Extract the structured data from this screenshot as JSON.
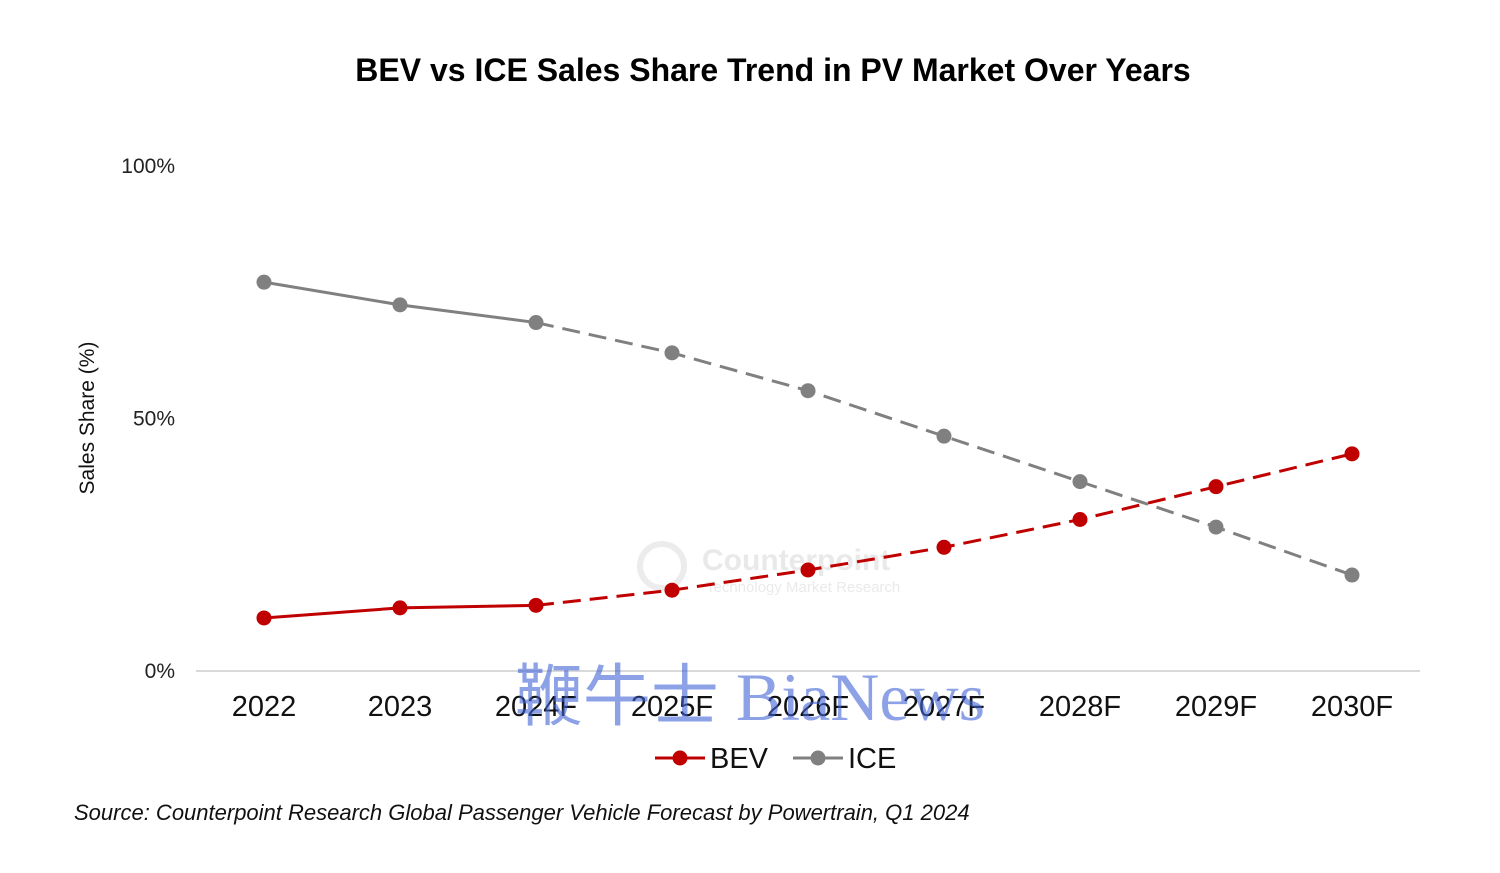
{
  "chart_data": {
    "type": "line",
    "title": "BEV vs ICE Sales Share Trend in PV Market Over Years",
    "ylabel": "Sales Share (%)",
    "xlabel": "",
    "categories": [
      "2022",
      "2023",
      "2024F",
      "2025F",
      "2026F",
      "2027F",
      "2028F",
      "2029F",
      "2030F"
    ],
    "yticks": [
      {
        "value": 0,
        "label": "0%"
      },
      {
        "value": 50,
        "label": "50%"
      },
      {
        "value": 100,
        "label": "100%"
      }
    ],
    "ylim": [
      0,
      100
    ],
    "forecast_start_index": 2,
    "legend_position": "bottom",
    "series": [
      {
        "name": "BEV",
        "color": "#c00000",
        "values": [
          10.5,
          12.5,
          13,
          16,
          20,
          24.5,
          30,
          36.5,
          43
        ]
      },
      {
        "name": "ICE",
        "color": "#808080",
        "values": [
          77,
          72.5,
          69,
          63,
          55.5,
          46.5,
          37.5,
          28.5,
          19
        ]
      }
    ],
    "source": "Source: Counterpoint Research Global Passenger Vehicle Forecast by Powertrain, Q1 2024",
    "watermarks": [
      {
        "text": "Counterpoint",
        "subtext": "Technology Market Research"
      },
      {
        "text": "鞭牛士 BiaNews"
      }
    ]
  }
}
